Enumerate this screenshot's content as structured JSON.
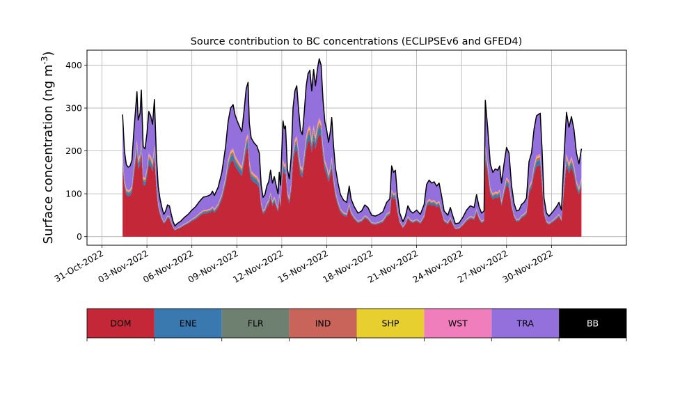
{
  "chart_data": {
    "type": "area",
    "title": "Source contribution to BC concentrations (ECLIPSEv6 and GFED4)",
    "ylabel": "Surface concentration (ng m",
    "ylabel_sup": "-3",
    "ylabel_close": ")",
    "xlabel": "",
    "ylim": [
      -20,
      435
    ],
    "yticks": [
      0,
      100,
      200,
      300,
      400
    ],
    "xlim": [
      "2022-10-30",
      "2022-12-05"
    ],
    "xticks": [
      "2022-10-31",
      "2022-11-03",
      "2022-11-06",
      "2022-11-09",
      "2022-11-12",
      "2022-11-15",
      "2022-11-18",
      "2022-11-21",
      "2022-11-24",
      "2022-11-27",
      "2022-11-30"
    ],
    "xtick_labels": [
      "31-Oct-2022",
      "03-Nov-2022",
      "06-Nov-2022",
      "09-Nov-2022",
      "12-Nov-2022",
      "15-Nov-2022",
      "18-Nov-2022",
      "21-Nov-2022",
      "24-Nov-2022",
      "27-Nov-2022",
      "30-Nov-2022"
    ],
    "grid": true,
    "stacked": true,
    "total_line_color": "#000000",
    "legend_position": "bottom",
    "series": [
      {
        "name": "DOM",
        "color": "#c42838"
      },
      {
        "name": "ENE",
        "color": "#3a78b0"
      },
      {
        "name": "FLR",
        "color": "#6e8070"
      },
      {
        "name": "IND",
        "color": "#c8645a"
      },
      {
        "name": "SHP",
        "color": "#e6cf2e"
      },
      {
        "name": "WST",
        "color": "#f07ebc"
      },
      {
        "name": "TRA",
        "color": "#9370dc"
      },
      {
        "name": "BB",
        "color": "#000000"
      }
    ],
    "total_profile": [
      [
        "2022-11-01T09:00",
        285
      ],
      [
        "2022-11-01T12:00",
        200
      ],
      [
        "2022-11-01T15:00",
        168
      ],
      [
        "2022-11-01T18:00",
        162
      ],
      [
        "2022-11-01T21:00",
        165
      ],
      [
        "2022-11-02T00:00",
        178
      ],
      [
        "2022-11-02T03:00",
        245
      ],
      [
        "2022-11-02T06:00",
        300
      ],
      [
        "2022-11-02T08:00",
        338
      ],
      [
        "2022-11-02T10:00",
        272
      ],
      [
        "2022-11-02T13:00",
        288
      ],
      [
        "2022-11-02T15:00",
        342
      ],
      [
        "2022-11-02T18:00",
        210
      ],
      [
        "2022-11-02T21:00",
        205
      ],
      [
        "2022-11-03T00:00",
        240
      ],
      [
        "2022-11-03T03:00",
        292
      ],
      [
        "2022-11-03T06:00",
        282
      ],
      [
        "2022-11-03T09:00",
        262
      ],
      [
        "2022-11-03T12:00",
        320
      ],
      [
        "2022-11-03T15:00",
        195
      ],
      [
        "2022-11-03T18:00",
        118
      ],
      [
        "2022-11-03T21:00",
        88
      ],
      [
        "2022-11-04T00:00",
        68
      ],
      [
        "2022-11-04T03:00",
        52
      ],
      [
        "2022-11-04T06:00",
        60
      ],
      [
        "2022-11-04T09:00",
        74
      ],
      [
        "2022-11-04T12:00",
        72
      ],
      [
        "2022-11-04T15:00",
        52
      ],
      [
        "2022-11-04T18:00",
        35
      ],
      [
        "2022-11-04T21:00",
        25
      ],
      [
        "2022-11-05T00:00",
        30
      ],
      [
        "2022-11-05T06:00",
        36
      ],
      [
        "2022-11-05T12:00",
        45
      ],
      [
        "2022-11-05T18:00",
        52
      ],
      [
        "2022-11-06T00:00",
        62
      ],
      [
        "2022-11-06T06:00",
        70
      ],
      [
        "2022-11-06T12:00",
        82
      ],
      [
        "2022-11-06T18:00",
        92
      ],
      [
        "2022-11-07T00:00",
        94
      ],
      [
        "2022-11-07T06:00",
        98
      ],
      [
        "2022-11-07T09:00",
        106
      ],
      [
        "2022-11-07T12:00",
        96
      ],
      [
        "2022-11-07T18:00",
        115
      ],
      [
        "2022-11-08T00:00",
        150
      ],
      [
        "2022-11-08T06:00",
        210
      ],
      [
        "2022-11-08T10:00",
        268
      ],
      [
        "2022-11-08T14:00",
        300
      ],
      [
        "2022-11-08T18:00",
        308
      ],
      [
        "2022-11-08T21:00",
        285
      ],
      [
        "2022-11-09T00:00",
        272
      ],
      [
        "2022-11-09T04:00",
        258
      ],
      [
        "2022-11-09T08:00",
        245
      ],
      [
        "2022-11-09T12:00",
        300
      ],
      [
        "2022-11-09T15:00",
        345
      ],
      [
        "2022-11-09T18:00",
        360
      ],
      [
        "2022-11-09T20:00",
        265
      ],
      [
        "2022-11-09T23:00",
        230
      ],
      [
        "2022-11-10T04:00",
        218
      ],
      [
        "2022-11-10T08:00",
        212
      ],
      [
        "2022-11-10T12:00",
        195
      ],
      [
        "2022-11-10T15:00",
        120
      ],
      [
        "2022-11-10T18:00",
        92
      ],
      [
        "2022-11-10T21:00",
        98
      ],
      [
        "2022-11-11T00:00",
        118
      ],
      [
        "2022-11-11T03:00",
        128
      ],
      [
        "2022-11-11T06:00",
        155
      ],
      [
        "2022-11-11T09:00",
        125
      ],
      [
        "2022-11-11T12:00",
        140
      ],
      [
        "2022-11-11T15:00",
        120
      ],
      [
        "2022-11-11T18:00",
        100
      ],
      [
        "2022-11-11T20:00",
        150
      ],
      [
        "2022-11-11T22:00",
        120
      ],
      [
        "2022-11-12T00:00",
        200
      ],
      [
        "2022-11-12T02:00",
        270
      ],
      [
        "2022-11-12T04:00",
        252
      ],
      [
        "2022-11-12T06:00",
        258
      ],
      [
        "2022-11-12T09:00",
        158
      ],
      [
        "2022-11-12T12:00",
        135
      ],
      [
        "2022-11-12T15:00",
        185
      ],
      [
        "2022-11-12T18:00",
        300
      ],
      [
        "2022-11-12T21:00",
        340
      ],
      [
        "2022-11-13T00:00",
        352
      ],
      [
        "2022-11-13T03:00",
        295
      ],
      [
        "2022-11-13T06:00",
        248
      ],
      [
        "2022-11-13T09:00",
        238
      ],
      [
        "2022-11-13T12:00",
        290
      ],
      [
        "2022-11-13T15:00",
        350
      ],
      [
        "2022-11-13T18:00",
        380
      ],
      [
        "2022-11-13T21:00",
        388
      ],
      [
        "2022-11-14T00:00",
        340
      ],
      [
        "2022-11-14T03:00",
        390
      ],
      [
        "2022-11-14T06:00",
        352
      ],
      [
        "2022-11-14T09:00",
        390
      ],
      [
        "2022-11-14T12:00",
        415
      ],
      [
        "2022-11-14T15:00",
        400
      ],
      [
        "2022-11-14T18:00",
        320
      ],
      [
        "2022-11-14T21:00",
        268
      ],
      [
        "2022-11-15T00:00",
        248
      ],
      [
        "2022-11-15T03:00",
        220
      ],
      [
        "2022-11-15T06:00",
        248
      ],
      [
        "2022-11-15T08:00",
        278
      ],
      [
        "2022-11-15T11:00",
        210
      ],
      [
        "2022-11-15T14:00",
        160
      ],
      [
        "2022-11-15T18:00",
        125
      ],
      [
        "2022-11-15T22:00",
        98
      ],
      [
        "2022-11-16T03:00",
        85
      ],
      [
        "2022-11-16T08:00",
        80
      ],
      [
        "2022-11-16T12:00",
        118
      ],
      [
        "2022-11-16T15:00",
        88
      ],
      [
        "2022-11-16T20:00",
        70
      ],
      [
        "2022-11-17T02:00",
        55
      ],
      [
        "2022-11-17T08:00",
        60
      ],
      [
        "2022-11-17T13:00",
        74
      ],
      [
        "2022-11-17T18:00",
        68
      ],
      [
        "2022-11-18T00:00",
        50
      ],
      [
        "2022-11-18T06:00",
        48
      ],
      [
        "2022-11-18T12:00",
        52
      ],
      [
        "2022-11-18T18:00",
        58
      ],
      [
        "2022-11-19T00:00",
        80
      ],
      [
        "2022-11-19T05:00",
        88
      ],
      [
        "2022-11-19T08:00",
        165
      ],
      [
        "2022-11-19T11:00",
        150
      ],
      [
        "2022-11-19T14:00",
        155
      ],
      [
        "2022-11-19T17:00",
        100
      ],
      [
        "2022-11-19T21:00",
        55
      ],
      [
        "2022-11-20T02:00",
        35
      ],
      [
        "2022-11-20T06:00",
        48
      ],
      [
        "2022-11-20T10:00",
        72
      ],
      [
        "2022-11-20T14:00",
        60
      ],
      [
        "2022-11-20T18:00",
        55
      ],
      [
        "2022-11-21T00:00",
        62
      ],
      [
        "2022-11-21T06:00",
        52
      ],
      [
        "2022-11-21T12:00",
        75
      ],
      [
        "2022-11-21T16:00",
        122
      ],
      [
        "2022-11-21T20:00",
        132
      ],
      [
        "2022-11-22T00:00",
        125
      ],
      [
        "2022-11-22T04:00",
        128
      ],
      [
        "2022-11-22T08:00",
        118
      ],
      [
        "2022-11-22T12:00",
        125
      ],
      [
        "2022-11-22T16:00",
        95
      ],
      [
        "2022-11-22T20:00",
        60
      ],
      [
        "2022-11-23T02:00",
        50
      ],
      [
        "2022-11-23T06:00",
        68
      ],
      [
        "2022-11-23T10:00",
        48
      ],
      [
        "2022-11-23T14:00",
        30
      ],
      [
        "2022-11-23T20:00",
        32
      ],
      [
        "2022-11-24T02:00",
        45
      ],
      [
        "2022-11-24T08:00",
        62
      ],
      [
        "2022-11-24T14:00",
        72
      ],
      [
        "2022-11-24T20:00",
        68
      ],
      [
        "2022-11-25T00:00",
        98
      ],
      [
        "2022-11-25T04:00",
        70
      ],
      [
        "2022-11-25T08:00",
        55
      ],
      [
        "2022-11-25T12:00",
        60
      ],
      [
        "2022-11-25T14:00",
        318
      ],
      [
        "2022-11-25T18:00",
        250
      ],
      [
        "2022-11-25T22:00",
        170
      ],
      [
        "2022-11-26T02:00",
        150
      ],
      [
        "2022-11-26T06:00",
        158
      ],
      [
        "2022-11-26T10:00",
        155
      ],
      [
        "2022-11-26T13:00",
        165
      ],
      [
        "2022-11-26T16:00",
        125
      ],
      [
        "2022-11-26T20:00",
        170
      ],
      [
        "2022-11-27T00:00",
        208
      ],
      [
        "2022-11-27T04:00",
        195
      ],
      [
        "2022-11-27T08:00",
        120
      ],
      [
        "2022-11-27T12:00",
        78
      ],
      [
        "2022-11-27T16:00",
        60
      ],
      [
        "2022-11-27T20:00",
        62
      ],
      [
        "2022-11-28T00:00",
        75
      ],
      [
        "2022-11-28T04:00",
        80
      ],
      [
        "2022-11-28T08:00",
        90
      ],
      [
        "2022-11-28T12:00",
        175
      ],
      [
        "2022-11-28T16:00",
        195
      ],
      [
        "2022-11-28T20:00",
        250
      ],
      [
        "2022-11-29T00:00",
        282
      ],
      [
        "2022-11-29T06:00",
        288
      ],
      [
        "2022-11-29T09:00",
        200
      ],
      [
        "2022-11-29T12:00",
        90
      ],
      [
        "2022-11-29T16:00",
        55
      ],
      [
        "2022-11-29T20:00",
        48
      ],
      [
        "2022-11-30T02:00",
        58
      ],
      [
        "2022-11-30T08:00",
        70
      ],
      [
        "2022-11-30T12:00",
        80
      ],
      [
        "2022-11-30T16:00",
        62
      ],
      [
        "2022-11-30T20:00",
        185
      ],
      [
        "2022-12-01T00:00",
        290
      ],
      [
        "2022-12-01T04:00",
        255
      ],
      [
        "2022-12-01T08:00",
        280
      ],
      [
        "2022-12-01T12:00",
        250
      ],
      [
        "2022-12-01T16:00",
        195
      ],
      [
        "2022-12-01T20:00",
        170
      ],
      [
        "2022-12-02T00:00",
        205
      ]
    ],
    "fractions": {
      "DOM": 0.58,
      "ENE": 0.04,
      "FLR": 0.01,
      "IND": 0.015,
      "SHP": 0.01,
      "WST": 0.015,
      "TRA": 0.33,
      "BB": 0.0
    }
  }
}
